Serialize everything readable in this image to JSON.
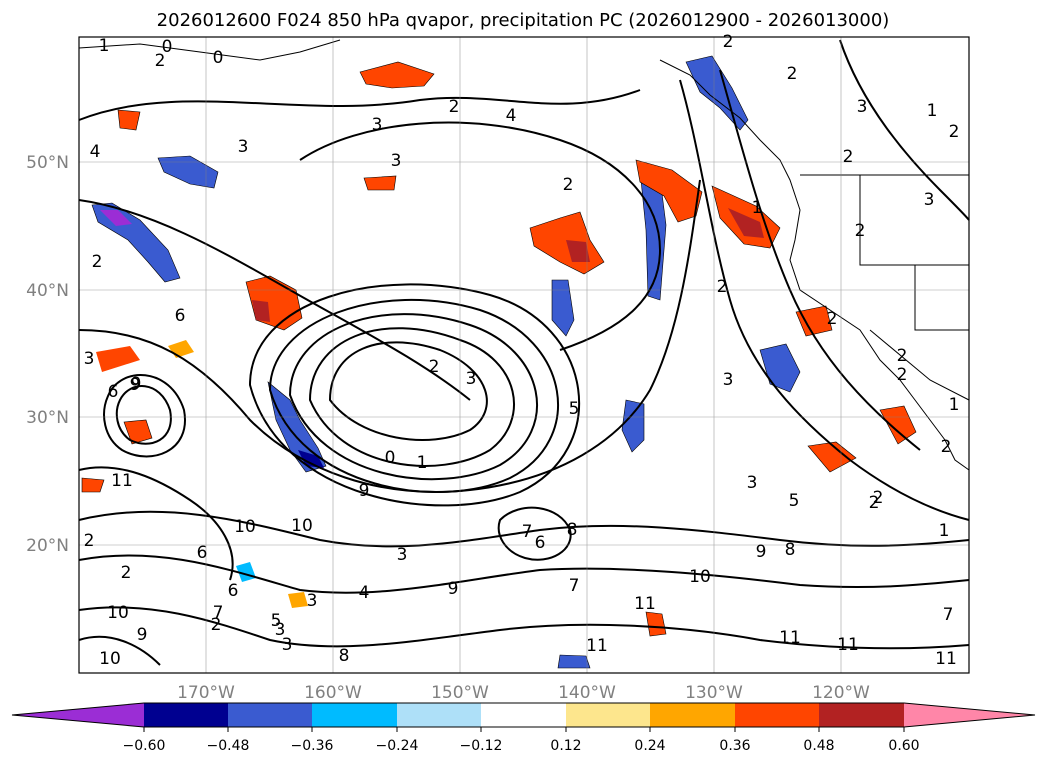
{
  "title": "2026012600 F024 850 hPa qvapor, precipitation PC (2026012900 - 2026013000)",
  "map": {
    "lat_ticks": [
      "50°N",
      "40°N",
      "30°N",
      "20°N"
    ],
    "lon_ticks": [
      "170°W",
      "160°W",
      "150°W",
      "140°W",
      "130°W",
      "120°W"
    ]
  },
  "contour_labels": [
    "0",
    "2",
    "0",
    "2",
    "2",
    "4",
    "3",
    "3",
    "3",
    "2",
    "2",
    "2",
    "3",
    "3",
    "2",
    "1",
    "2",
    "3",
    "1",
    "2",
    "1",
    "4",
    "2",
    "2",
    "3",
    "2",
    "2",
    "2",
    "2",
    "2",
    "3",
    "6",
    "9",
    "6",
    "3",
    "2",
    "2",
    "3",
    "5",
    "0",
    "1",
    "9",
    "9",
    "11",
    "10",
    "10",
    "6",
    "7",
    "8",
    "6",
    "9",
    "9",
    "8",
    "7",
    "5",
    "3",
    "7",
    "4",
    "10",
    "11",
    "3",
    "10",
    "9",
    "6",
    "2",
    "3",
    "5",
    "10",
    "8",
    "11",
    "2",
    "11",
    "11",
    "11",
    "7",
    "1",
    "1"
  ],
  "colorbar": {
    "ticks": [
      "−0.60",
      "−0.48",
      "−0.36",
      "−0.24",
      "−0.12",
      "0.12",
      "0.24",
      "0.36",
      "0.48",
      "0.60"
    ],
    "colors": [
      "#9b2dd5",
      "#000090",
      "#3a5bd0",
      "#00bbff",
      "#aee0f8",
      "#ffffff",
      "#fde68d",
      "#ffa600",
      "#ff4500",
      "#b22222",
      "#ff86a8"
    ]
  }
}
